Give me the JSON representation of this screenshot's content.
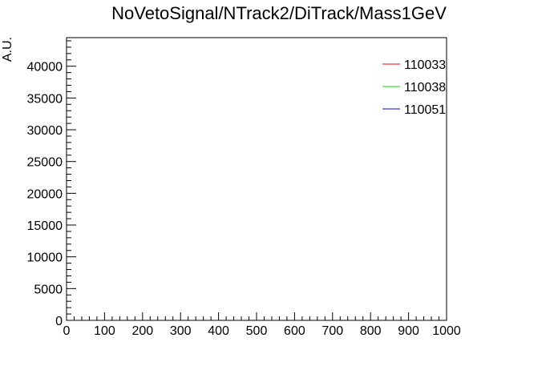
{
  "chart_data": {
    "type": "line",
    "title": "NoVetoSignal/NTrack2/DiTrack/Mass1GeV",
    "xlabel": "",
    "ylabel": "A.U.",
    "xlim": [
      0,
      1000
    ],
    "ylim": [
      0,
      44500
    ],
    "x_ticks": [
      0,
      100,
      200,
      300,
      400,
      500,
      600,
      700,
      800,
      900,
      1000
    ],
    "y_ticks": [
      0,
      5000,
      10000,
      15000,
      20000,
      25000,
      30000,
      35000,
      40000
    ],
    "grid": false,
    "legend_position": "top-right",
    "series": [
      {
        "name": "110033",
        "color": "#ff0000",
        "points": []
      },
      {
        "name": "110038",
        "color": "#00dd00",
        "points": []
      },
      {
        "name": "110051",
        "color": "#0000cc",
        "points": []
      }
    ]
  }
}
